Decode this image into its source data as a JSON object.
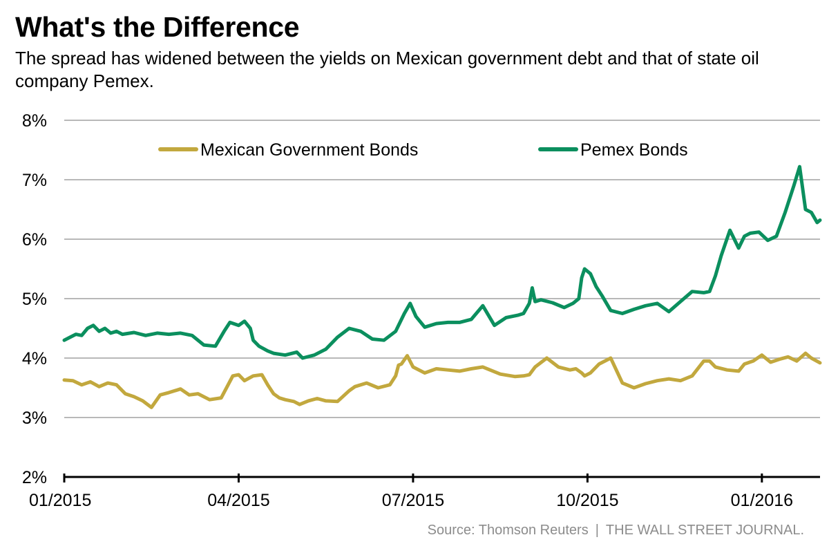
{
  "title": "What's the Difference",
  "subtitle": "The spread has widened between the yields on Mexican government debt and that of state oil company Pemex.",
  "source": {
    "text": "Source: Thomson Reuters",
    "separator": "|",
    "publisher": "THE WALL STREET JOURNAL."
  },
  "colors": {
    "mexican": "#c2a83e",
    "pemex": "#0b8f5e",
    "grid": "#b8b8b8",
    "axis": "#000000"
  },
  "chart_data": {
    "type": "line",
    "title": "What's the Difference",
    "xlabel": "",
    "ylabel": "",
    "ylim": [
      2,
      8
    ],
    "xlim": [
      0,
      13
    ],
    "x_unit": "months since 01/2015",
    "yticks": [
      2,
      3,
      4,
      5,
      6,
      7,
      8
    ],
    "ytick_labels": [
      "2%",
      "3%",
      "4%",
      "5%",
      "6%",
      "7%",
      "8%"
    ],
    "xticks": [
      0,
      3,
      6,
      9,
      12
    ],
    "xtick_labels": [
      "01/2015",
      "04/2015",
      "07/2015",
      "10/2015",
      "01/2016"
    ],
    "grid": true,
    "legend_position": "top",
    "series": [
      {
        "name": "Mexican Government Bonds",
        "color": "#c2a83e",
        "x": [
          0,
          0.15,
          0.3,
          0.45,
          0.6,
          0.75,
          0.9,
          1.05,
          1.2,
          1.35,
          1.5,
          1.65,
          1.8,
          2.0,
          2.15,
          2.3,
          2.5,
          2.7,
          2.9,
          3.0,
          3.1,
          3.25,
          3.4,
          3.5,
          3.6,
          3.7,
          3.8,
          3.95,
          4.05,
          4.2,
          4.35,
          4.5,
          4.7,
          4.9,
          5.0,
          5.2,
          5.4,
          5.6,
          5.7,
          5.75,
          5.8,
          5.9,
          6.0,
          6.2,
          6.4,
          6.6,
          6.8,
          7.0,
          7.2,
          7.5,
          7.75,
          7.9,
          8.0,
          8.1,
          8.3,
          8.5,
          8.7,
          8.8,
          8.9,
          8.95,
          9.05,
          9.2,
          9.4,
          9.6,
          9.8,
          10.0,
          10.2,
          10.4,
          10.6,
          10.8,
          11.0,
          11.1,
          11.2,
          11.4,
          11.6,
          11.7,
          11.85,
          12.0,
          12.15,
          12.3,
          12.45,
          12.6,
          12.75,
          12.85,
          13.0
        ],
        "values": [
          3.63,
          3.62,
          3.55,
          3.6,
          3.52,
          3.58,
          3.55,
          3.4,
          3.35,
          3.28,
          3.17,
          3.38,
          3.42,
          3.48,
          3.38,
          3.4,
          3.3,
          3.33,
          3.7,
          3.72,
          3.62,
          3.7,
          3.72,
          3.55,
          3.4,
          3.33,
          3.3,
          3.27,
          3.22,
          3.28,
          3.32,
          3.28,
          3.27,
          3.45,
          3.52,
          3.58,
          3.5,
          3.55,
          3.7,
          3.88,
          3.9,
          4.04,
          3.85,
          3.75,
          3.82,
          3.8,
          3.78,
          3.82,
          3.85,
          3.73,
          3.69,
          3.7,
          3.72,
          3.85,
          4.0,
          3.85,
          3.8,
          3.82,
          3.75,
          3.7,
          3.75,
          3.9,
          4.0,
          3.58,
          3.5,
          3.57,
          3.62,
          3.65,
          3.62,
          3.7,
          3.95,
          3.95,
          3.85,
          3.8,
          3.78,
          3.9,
          3.95,
          4.05,
          3.93,
          3.98,
          4.02,
          3.95,
          4.08,
          4.0,
          3.92
        ]
      },
      {
        "name": "Pemex Bonds",
        "color": "#0b8f5e",
        "x": [
          0,
          0.1,
          0.2,
          0.3,
          0.4,
          0.5,
          0.6,
          0.7,
          0.8,
          0.9,
          1.0,
          1.2,
          1.4,
          1.6,
          1.8,
          2.0,
          2.2,
          2.4,
          2.6,
          2.75,
          2.85,
          3.0,
          3.1,
          3.2,
          3.25,
          3.35,
          3.5,
          3.6,
          3.8,
          4.0,
          4.1,
          4.3,
          4.5,
          4.7,
          4.9,
          5.1,
          5.3,
          5.5,
          5.7,
          5.8,
          5.85,
          5.95,
          6.05,
          6.2,
          6.4,
          6.6,
          6.8,
          7.0,
          7.2,
          7.4,
          7.6,
          7.8,
          7.9,
          8.0,
          8.05,
          8.1,
          8.2,
          8.4,
          8.6,
          8.75,
          8.85,
          8.9,
          8.95,
          9.05,
          9.15,
          9.25,
          9.4,
          9.6,
          9.8,
          10.0,
          10.2,
          10.4,
          10.6,
          10.8,
          11.0,
          11.1,
          11.2,
          11.3,
          11.45,
          11.6,
          11.7,
          11.8,
          11.95,
          12.1,
          12.25,
          12.4,
          12.55,
          12.65,
          12.75,
          12.85,
          12.95,
          13.0
        ],
        "values": [
          4.3,
          4.35,
          4.4,
          4.38,
          4.5,
          4.55,
          4.45,
          4.5,
          4.42,
          4.45,
          4.4,
          4.43,
          4.38,
          4.42,
          4.4,
          4.42,
          4.38,
          4.22,
          4.2,
          4.45,
          4.6,
          4.55,
          4.62,
          4.5,
          4.3,
          4.2,
          4.12,
          4.08,
          4.05,
          4.1,
          4.0,
          4.05,
          4.15,
          4.35,
          4.5,
          4.45,
          4.32,
          4.3,
          4.45,
          4.65,
          4.75,
          4.92,
          4.7,
          4.52,
          4.58,
          4.6,
          4.6,
          4.65,
          4.88,
          4.55,
          4.68,
          4.72,
          4.75,
          4.92,
          5.18,
          4.95,
          4.98,
          4.93,
          4.85,
          4.92,
          5.0,
          5.35,
          5.5,
          5.42,
          5.2,
          5.05,
          4.8,
          4.75,
          4.82,
          4.88,
          4.92,
          4.78,
          4.95,
          5.12,
          5.1,
          5.12,
          5.38,
          5.72,
          6.15,
          5.85,
          6.05,
          6.1,
          6.12,
          5.98,
          6.05,
          6.45,
          6.9,
          7.22,
          6.5,
          6.45,
          6.28,
          6.32
        ]
      }
    ]
  }
}
